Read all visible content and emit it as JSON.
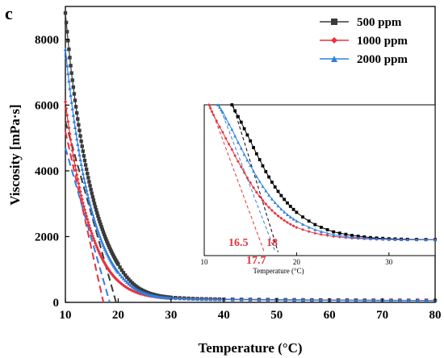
{
  "panel_label": "c",
  "colors": {
    "500 ppm": "#3a3a3a",
    "1000 ppm": "#e8323c",
    "2000 ppm": "#2f7fe0"
  },
  "chart_data": [
    {
      "type": "line",
      "xlabel": "Temperature (°C)",
      "ylabel": "Viscosity [mPa·s]",
      "xlim": [
        10,
        80
      ],
      "ylim": [
        0,
        9000
      ],
      "xticks": [
        10,
        20,
        30,
        40,
        50,
        60,
        70,
        80
      ],
      "yticks": [
        0,
        2000,
        4000,
        6000,
        8000
      ],
      "legend": "top-right",
      "series": [
        {
          "name": "500 ppm",
          "marker": "square",
          "x": [
            10,
            11,
            12,
            13,
            14,
            15,
            16,
            17,
            18,
            19,
            20,
            22,
            24,
            26,
            28,
            30,
            35,
            40,
            50,
            60,
            70,
            80
          ],
          "y": [
            8800,
            7200,
            5950,
            4900,
            4050,
            3320,
            2720,
            2220,
            1800,
            1450,
            1160,
            700,
            420,
            270,
            190,
            150,
            110,
            95,
            80,
            70,
            62,
            58
          ]
        },
        {
          "name": "1000 ppm",
          "marker": "diamond",
          "x": [
            10,
            11,
            12,
            13,
            14,
            15,
            16,
            17,
            18,
            19,
            20,
            22,
            24,
            26,
            28,
            30,
            35,
            40,
            50,
            60,
            70,
            80
          ],
          "y": [
            6100,
            4950,
            4020,
            3250,
            2620,
            2100,
            1670,
            1320,
            1040,
            820,
            650,
            410,
            270,
            190,
            145,
            120,
            95,
            85,
            72,
            64,
            58,
            55
          ]
        },
        {
          "name": "2000 ppm",
          "marker": "triangle",
          "x": [
            10,
            11,
            12,
            13,
            14,
            15,
            16,
            17,
            18,
            19,
            20,
            22,
            24,
            26,
            28,
            30,
            35,
            40,
            50,
            60,
            70,
            80
          ],
          "y": [
            7700,
            6300,
            5150,
            4200,
            3420,
            2780,
            2250,
            1810,
            1450,
            1160,
            920,
            570,
            350,
            230,
            165,
            130,
            100,
            88,
            75,
            66,
            60,
            56
          ]
        }
      ],
      "tangents": [
        {
          "series": "500 ppm",
          "x": [
            10,
            19.6
          ],
          "y": [
            5500,
            0
          ]
        },
        {
          "series": "1000 ppm",
          "x": [
            10,
            17.2
          ],
          "y": [
            5200,
            0
          ]
        },
        {
          "series": "2000 ppm",
          "x": [
            10,
            18.4
          ],
          "y": [
            4700,
            0
          ]
        }
      ]
    },
    {
      "type": "line",
      "xlabel": "Temperature (°C)",
      "xlim": [
        10,
        35
      ],
      "ylim": [
        0,
        1000
      ],
      "xticks": [
        10,
        20,
        30
      ],
      "series": [
        {
          "name": "500 ppm",
          "x": [
            13,
            14,
            15,
            16,
            17,
            18,
            19,
            20,
            22,
            24,
            26,
            28,
            30,
            32,
            35
          ],
          "y": [
            1000,
            880,
            750,
            620,
            500,
            400,
            320,
            255,
            170,
            120,
            95,
            80,
            72,
            68,
            66
          ]
        },
        {
          "name": "1000 ppm",
          "x": [
            10.5,
            11,
            12,
            13,
            14,
            15,
            16,
            17,
            18,
            19,
            20,
            22,
            24,
            26,
            28,
            30,
            32,
            35
          ],
          "y": [
            1000,
            930,
            810,
            690,
            570,
            460,
            365,
            290,
            230,
            185,
            150,
            110,
            88,
            76,
            70,
            67,
            65,
            64
          ]
        },
        {
          "name": "2000 ppm",
          "x": [
            11.5,
            12,
            13,
            14,
            15,
            16,
            17,
            18,
            19,
            20,
            22,
            24,
            26,
            28,
            30,
            32,
            35
          ],
          "y": [
            1000,
            950,
            830,
            700,
            580,
            470,
            375,
            300,
            240,
            195,
            135,
            100,
            82,
            73,
            68,
            66,
            65
          ]
        }
      ],
      "annotations": [
        {
          "text": "16.5",
          "x": 15.3,
          "y": 40,
          "color": "#e8323c"
        },
        {
          "text": "18",
          "x": 18.6,
          "y": 40,
          "color": "#e8323c"
        },
        {
          "text": "17.7",
          "x": 17.4,
          "y": -120,
          "color": "#e8323c"
        }
      ]
    }
  ]
}
